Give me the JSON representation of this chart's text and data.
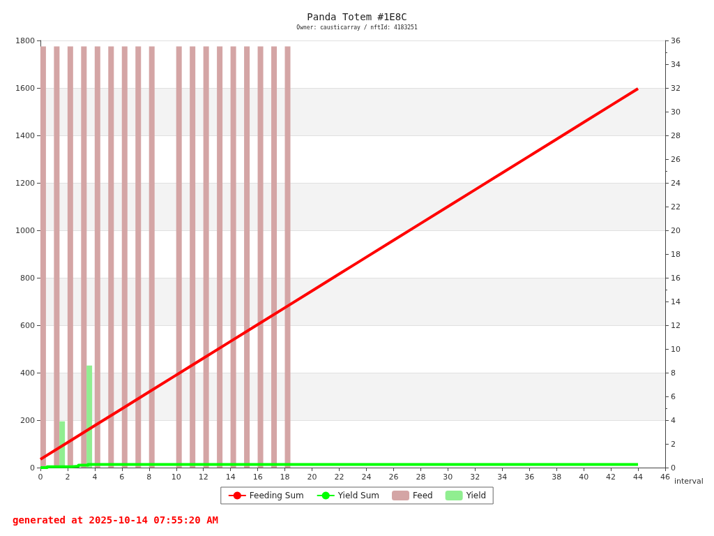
{
  "chart_data": {
    "type": "line",
    "title": "Panda Totem #1E8C",
    "subtitle": "Owner: causticarray / nftId: 4183251",
    "xlabel": "interval",
    "xlim": [
      0,
      46
    ],
    "xticks": [
      0,
      2,
      4,
      6,
      8,
      10,
      12,
      14,
      16,
      18,
      20,
      22,
      24,
      26,
      28,
      30,
      32,
      34,
      36,
      38,
      40,
      42,
      44,
      46
    ],
    "ylim": [
      0,
      1800
    ],
    "yticks": [
      0,
      200,
      400,
      600,
      800,
      1000,
      1200,
      1400,
      1600,
      1800
    ],
    "y2lim": [
      0,
      36
    ],
    "y2ticks": [
      0,
      2,
      4,
      6,
      8,
      10,
      12,
      14,
      16,
      18,
      20,
      22,
      24,
      26,
      28,
      30,
      32,
      34,
      36
    ],
    "grid": "y",
    "legend": "bottom",
    "series": [
      {
        "name": "Feeding Sum",
        "color": "#ff0000",
        "x": [
          0,
          2,
          4,
          6,
          8,
          10,
          12,
          14,
          16,
          18,
          20,
          22,
          24,
          26,
          28,
          30,
          32,
          34,
          36,
          38,
          40,
          42,
          44
        ],
        "values": [
          35,
          106,
          177,
          248,
          319,
          390,
          461,
          532,
          603,
          674,
          745,
          816,
          887,
          958,
          1029,
          1100,
          1171,
          1242,
          1313,
          1384,
          1455,
          1526,
          1597
        ]
      },
      {
        "name": "Yield Sum",
        "type": "step",
        "color": "#00ff00",
        "x": [
          0,
          0.5,
          2.3,
          2.8,
          3.5,
          44
        ],
        "values": [
          0,
          4,
          6,
          10,
          13,
          13
        ]
      },
      {
        "name": "Feed",
        "type": "bar",
        "axis": "y2",
        "color": "#d4a5a5",
        "x": [
          0.2,
          1.2,
          2.2,
          3.2,
          4.2,
          5.2,
          6.2,
          7.2,
          8.2,
          10.2,
          11.2,
          12.2,
          13.2,
          14.2,
          15.2,
          16.2,
          17.2,
          18.2
        ],
        "values": [
          35.5,
          35.5,
          35.5,
          35.5,
          35.5,
          35.5,
          35.5,
          35.5,
          35.5,
          35.5,
          35.5,
          35.5,
          35.5,
          35.5,
          35.5,
          35.5,
          35.5,
          35.5
        ]
      },
      {
        "name": "Yield",
        "type": "bar",
        "axis": "y2",
        "color": "#90ee90",
        "x": [
          1.6,
          3.6
        ],
        "values": [
          3.9,
          8.6
        ]
      }
    ],
    "annotations": [
      "generated at 2025-10-14 07:55:20 AM"
    ]
  }
}
